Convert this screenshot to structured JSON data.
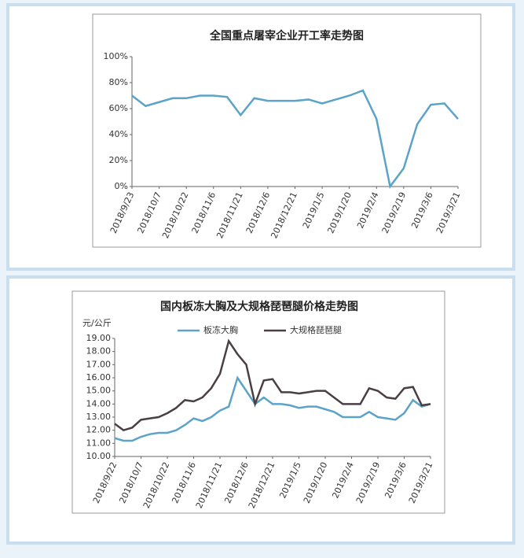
{
  "chart_data": [
    {
      "type": "line",
      "title": "全国重点屠宰企业开工率走势图",
      "categories": [
        "2018/9/23",
        null,
        "2018/10/7",
        null,
        "2018/10/22",
        null,
        "2018/11/6",
        null,
        "2018/11/21",
        null,
        "2018/12/6",
        null,
        "2018/12/21",
        null,
        "2019/1/5",
        null,
        "2019/1/20",
        null,
        "2019/2/4",
        null,
        "2019/2/19",
        null,
        "2019/3/6",
        null,
        "2019/3/21"
      ],
      "values": [
        70,
        62,
        65,
        68,
        68,
        70,
        70,
        69,
        55,
        68,
        66,
        66,
        66,
        67,
        64,
        67,
        70,
        74,
        52,
        0,
        14,
        48,
        63,
        64,
        52
      ],
      "color": "#5ba3c9",
      "ylim": [
        0,
        100
      ],
      "yticks": [
        {
          "value": 0,
          "label": "0%"
        },
        {
          "value": 20,
          "label": "20%"
        },
        {
          "value": 40,
          "label": "40%"
        },
        {
          "value": 60,
          "label": "60%"
        },
        {
          "value": 80,
          "label": "80%"
        },
        {
          "value": 100,
          "label": "100%"
        }
      ]
    },
    {
      "type": "line",
      "title": "国内板冻大胸及大规格琵琶腿价格走势图",
      "y_label": "元/公斤",
      "categories": [
        "2018/9/22",
        null,
        null,
        "2018/10/7",
        null,
        null,
        "2018/10/22",
        null,
        null,
        "2018/11/6",
        null,
        null,
        "2018/11/21",
        null,
        null,
        "2018/12/6",
        null,
        null,
        "2018/12/21",
        null,
        null,
        "2019/1/5",
        null,
        null,
        "2019/1/20",
        null,
        null,
        "2019/2/4",
        null,
        null,
        "2019/2/19",
        null,
        null,
        "2019/3/6",
        null,
        null,
        "2019/3/21"
      ],
      "series": [
        {
          "name": "板冻大胸",
          "color": "#5ba3c9",
          "values": [
            11.4,
            11.2,
            11.2,
            11.5,
            11.7,
            11.8,
            11.8,
            12.0,
            12.4,
            12.9,
            12.7,
            13.0,
            13.5,
            13.8,
            16.0,
            15.0,
            14.0,
            14.5,
            14.0,
            14.0,
            13.9,
            13.7,
            13.8,
            13.8,
            13.6,
            13.4,
            13.0,
            13.0,
            13.0,
            13.4,
            13.0,
            12.9,
            12.8,
            13.3,
            14.3,
            13.8,
            14.0
          ]
        },
        {
          "name": "大规格琵琶腿",
          "color": "#4a3f44",
          "values": [
            12.5,
            12.0,
            12.2,
            12.8,
            12.9,
            13.0,
            13.3,
            13.7,
            14.3,
            14.2,
            14.5,
            15.2,
            16.3,
            18.8,
            17.8,
            17.0,
            14.0,
            15.8,
            15.9,
            14.9,
            14.9,
            14.8,
            14.9,
            15.0,
            15.0,
            14.5,
            14.0,
            14.0,
            14.0,
            15.2,
            15.0,
            14.5,
            14.4,
            15.2,
            15.3,
            13.9,
            14.0
          ]
        }
      ],
      "ylim": [
        10,
        19
      ],
      "yticks": [
        {
          "value": 10,
          "label": "10.00"
        },
        {
          "value": 11,
          "label": "11.00"
        },
        {
          "value": 12,
          "label": "12.00"
        },
        {
          "value": 13,
          "label": "13.00"
        },
        {
          "value": 14,
          "label": "14.00"
        },
        {
          "value": 15,
          "label": "15.00"
        },
        {
          "value": 16,
          "label": "16.00"
        },
        {
          "value": 17,
          "label": "17.00"
        },
        {
          "value": 18,
          "label": "18.00"
        },
        {
          "value": 19,
          "label": "19.00"
        }
      ],
      "legend": "top"
    }
  ]
}
